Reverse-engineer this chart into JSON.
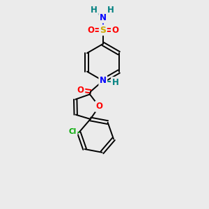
{
  "background_color": "#ebebeb",
  "colors": {
    "S": "#ccaa00",
    "O": "#ff0000",
    "N": "#0000ff",
    "H": "#008080",
    "Cl": "#00aa00",
    "C": "#000000"
  },
  "figsize": [
    3.0,
    3.0
  ],
  "dpi": 100,
  "xlim": [
    30,
    230
  ],
  "ylim": [
    20,
    290
  ]
}
